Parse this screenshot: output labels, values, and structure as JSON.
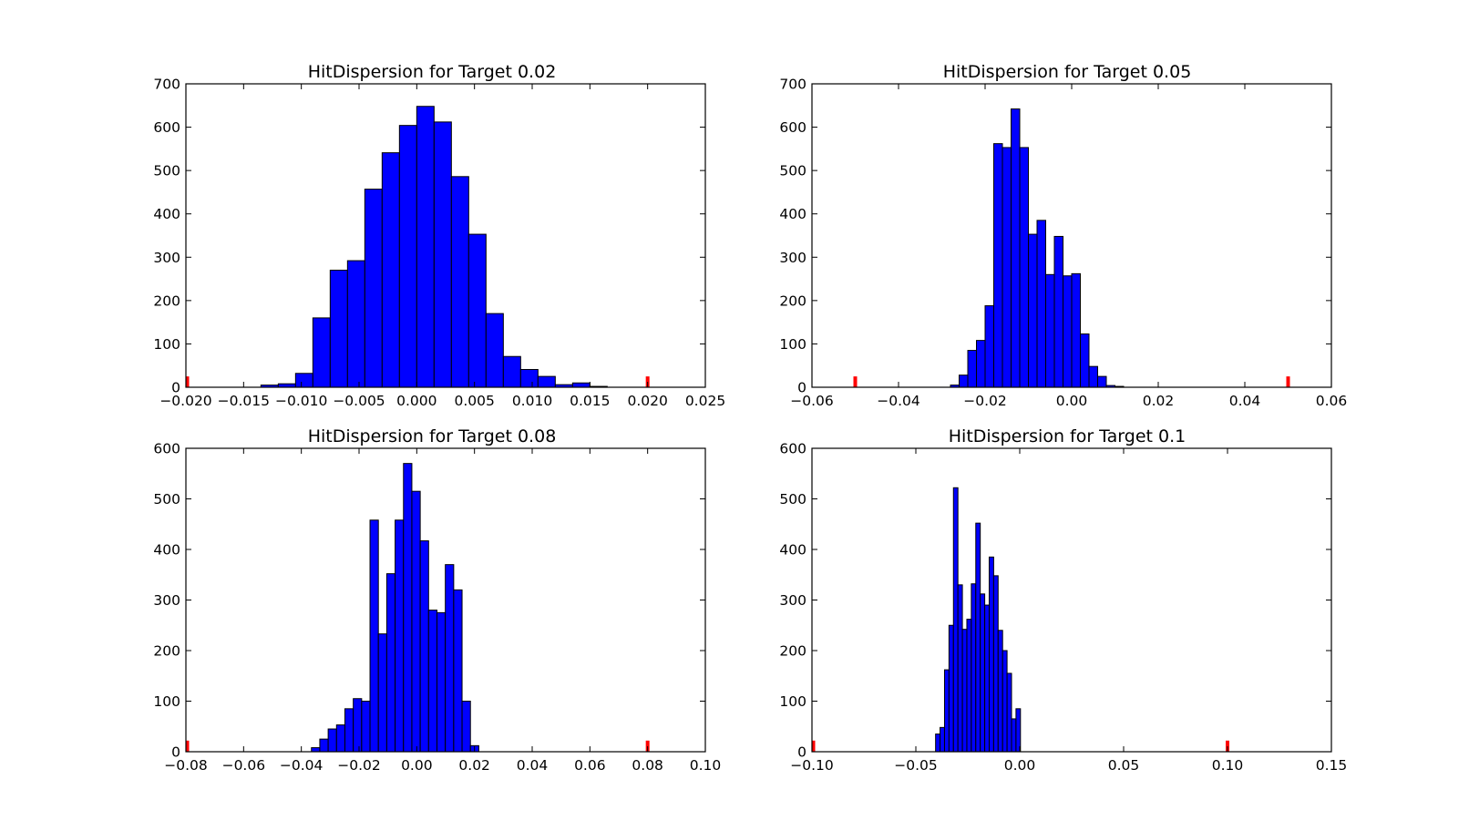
{
  "colors": {
    "bar": "#0000ff",
    "bar_edge": "#000000",
    "marker": "#ff0000",
    "axes": "#000000"
  },
  "chart_data": [
    {
      "type": "bar",
      "title": "HitDispersion for Target 0.02",
      "xlim": [
        -0.02,
        0.025
      ],
      "ylim": [
        0,
        700
      ],
      "xticks": [
        -0.02,
        -0.015,
        -0.01,
        -0.005,
        0.0,
        0.005,
        0.01,
        0.015,
        0.02,
        0.025
      ],
      "xtick_labels": [
        "−0.020",
        "−0.015",
        "−0.010",
        "−0.005",
        "0.000",
        "0.005",
        "0.010",
        "0.015",
        "0.020",
        "0.025"
      ],
      "yticks": [
        0,
        100,
        200,
        300,
        400,
        500,
        600,
        700
      ],
      "ytick_labels": [
        "0",
        "100",
        "200",
        "300",
        "400",
        "500",
        "600",
        "700"
      ],
      "bin_start": -0.0135,
      "bin_width": 0.0015,
      "values": [
        5,
        8,
        32,
        160,
        270,
        292,
        457,
        541,
        604,
        648,
        612,
        486,
        353,
        170,
        71,
        41,
        25,
        6,
        10,
        2
      ],
      "markers": [
        -0.02,
        0.02
      ],
      "marker_height": 25,
      "grid": false
    },
    {
      "type": "bar",
      "title": "HitDispersion for Target 0.05",
      "xlim": [
        -0.06,
        0.06
      ],
      "ylim": [
        0,
        700
      ],
      "xticks": [
        -0.06,
        -0.04,
        -0.02,
        0.0,
        0.02,
        0.04,
        0.06
      ],
      "xtick_labels": [
        "−0.06",
        "−0.04",
        "−0.02",
        "0.00",
        "0.02",
        "0.04",
        "0.06"
      ],
      "yticks": [
        0,
        100,
        200,
        300,
        400,
        500,
        600,
        700
      ],
      "ytick_labels": [
        "0",
        "100",
        "200",
        "300",
        "400",
        "500",
        "600",
        "700"
      ],
      "bin_start": -0.028,
      "bin_width": 0.002,
      "values": [
        5,
        28,
        85,
        108,
        188,
        562,
        553,
        642,
        553,
        353,
        385,
        260,
        348,
        257,
        262,
        123,
        48,
        25,
        4,
        2
      ],
      "markers": [
        -0.05,
        0.05
      ],
      "marker_height": 25,
      "grid": false
    },
    {
      "type": "bar",
      "title": "HitDispersion for Target 0.08",
      "xlim": [
        -0.08,
        0.1
      ],
      "ylim": [
        0,
        600
      ],
      "xticks": [
        -0.08,
        -0.06,
        -0.04,
        -0.02,
        0.0,
        0.02,
        0.04,
        0.06,
        0.08,
        0.1
      ],
      "xtick_labels": [
        "−0.08",
        "−0.06",
        "−0.04",
        "−0.02",
        "0.00",
        "0.02",
        "0.04",
        "0.06",
        "0.08",
        "0.10"
      ],
      "yticks": [
        0,
        100,
        200,
        300,
        400,
        500,
        600
      ],
      "ytick_labels": [
        "0",
        "100",
        "200",
        "300",
        "400",
        "500",
        "600"
      ],
      "bin_start": -0.0365,
      "bin_width": 0.0029,
      "values": [
        8,
        25,
        45,
        53,
        85,
        105,
        100,
        458,
        233,
        352,
        458,
        570,
        515,
        417,
        280,
        275,
        370,
        320,
        100,
        12
      ],
      "markers": [
        -0.08,
        0.08
      ],
      "marker_height": 22,
      "grid": false
    },
    {
      "type": "bar",
      "title": "HitDispersion for Target 0.1",
      "xlim": [
        -0.1,
        0.15
      ],
      "ylim": [
        0,
        600
      ],
      "xticks": [
        -0.1,
        -0.05,
        0.0,
        0.05,
        0.1,
        0.15
      ],
      "xtick_labels": [
        "−0.10",
        "−0.05",
        "0.00",
        "0.05",
        "0.10",
        "0.15"
      ],
      "yticks": [
        0,
        100,
        200,
        300,
        400,
        500,
        600
      ],
      "ytick_labels": [
        "0",
        "100",
        "200",
        "300",
        "400",
        "500",
        "600"
      ],
      "bin_start": -0.0405,
      "bin_width": 0.00215,
      "values": [
        35,
        48,
        162,
        250,
        522,
        330,
        242,
        262,
        332,
        452,
        312,
        290,
        385,
        348,
        240,
        200,
        155,
        65,
        85
      ],
      "markers": [
        -0.1,
        0.1
      ],
      "marker_height": 22,
      "grid": false
    }
  ]
}
